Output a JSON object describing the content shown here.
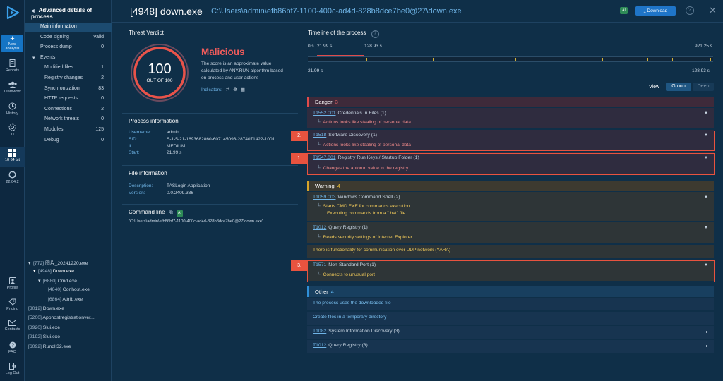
{
  "sidebar": {
    "new_analysis": "New analysis",
    "items": [
      {
        "label": "Reports",
        "icon": "document-icon"
      },
      {
        "label": "Teamwork",
        "icon": "team-icon"
      },
      {
        "label": "History",
        "icon": "history-icon"
      },
      {
        "label": "TI",
        "icon": "ti-icon"
      }
    ],
    "os_label": "10 64 bit",
    "ubuntu_label": "22.04.2",
    "bottom_items": [
      {
        "label": "Profile",
        "icon": "profile-icon"
      },
      {
        "label": "Pricing",
        "icon": "pricing-icon"
      },
      {
        "label": "Contacts",
        "icon": "contacts-icon"
      },
      {
        "label": "FAQ",
        "icon": "faq-icon"
      },
      {
        "label": "Log Out",
        "icon": "logout-icon"
      }
    ]
  },
  "panel": {
    "title": "Advanced details of process",
    "nav": [
      {
        "label": "Main information",
        "value": "",
        "indent": 0,
        "selected": true
      },
      {
        "label": "Code signing",
        "value": "Valid",
        "indent": 0
      },
      {
        "label": "Process dump",
        "value": "0",
        "indent": 0
      },
      {
        "label": "Events",
        "value": "",
        "indent": 0,
        "expand": true
      },
      {
        "label": "Modified files",
        "value": "1",
        "indent": 1
      },
      {
        "label": "Registry changes",
        "value": "2",
        "indent": 1
      },
      {
        "label": "Synchronization",
        "value": "83",
        "indent": 1
      },
      {
        "label": "HTTP requests",
        "value": "0",
        "indent": 1
      },
      {
        "label": "Connections",
        "value": "2",
        "indent": 1
      },
      {
        "label": "Network threats",
        "value": "0",
        "indent": 1
      },
      {
        "label": "Modules",
        "value": "125",
        "indent": 1
      },
      {
        "label": "Debug",
        "value": "0",
        "indent": 1
      }
    ],
    "processes": [
      {
        "pid": "[772]",
        "name": "图片_20241220.exe",
        "level": 0,
        "expand": true
      },
      {
        "pid": "[4948]",
        "name": "Down.exe",
        "level": 1,
        "expand": true,
        "selected": true
      },
      {
        "pid": "[6880]",
        "name": "Cmd.exe",
        "level": 2,
        "expand": true
      },
      {
        "pid": "[4640]",
        "name": "Conhost.exe",
        "level": 3
      },
      {
        "pid": "[6864]",
        "name": "Attrib.exe",
        "level": 3
      },
      {
        "pid": "[3012]",
        "name": "Down.exe",
        "level": 0
      },
      {
        "pid": "[5200]",
        "name": "Apphostregistrationver...",
        "level": 0
      },
      {
        "pid": "[3920]",
        "name": "Slui.exe",
        "level": 0
      },
      {
        "pid": "[2192]",
        "name": "Slui.exe",
        "level": 0
      },
      {
        "pid": "[6092]",
        "name": "Rundll32.exe",
        "level": 0
      }
    ]
  },
  "header": {
    "title": "[4948] down.exe",
    "path": "C:\\Users\\admin\\efb86bf7-1100-400c-ad4d-828b8dce7be0@27\\down.exe",
    "ai_label": "AI",
    "download_label": "Download",
    "help_label": "?",
    "close_label": "✕"
  },
  "verdict": {
    "section_title": "Threat Verdict",
    "score": "100",
    "score_max_label": "OUT OF 100",
    "score_fraction": 1.0,
    "verdict": "Malicious",
    "description": "The score is an approximate value calculated by ANY.RUN algorithm based on process and user actions",
    "indicators_label": "Indicators:"
  },
  "process_info": {
    "title": "Process information",
    "rows": [
      {
        "key": "Username:",
        "value": "admin"
      },
      {
        "key": "SID:",
        "value": "S-1-5-21-1693682860-607145093-2874071422-1001"
      },
      {
        "key": "IL:",
        "value": "MEDIUM"
      },
      {
        "key": "Start:",
        "value": "21.99 s"
      }
    ]
  },
  "file_info": {
    "title": "File information",
    "rows": [
      {
        "key": "Description:",
        "value": "TASLogin Application"
      },
      {
        "key": "Version:",
        "value": "0.0.2409.336"
      }
    ]
  },
  "command_line": {
    "title": "Command line",
    "ai_label": "AI",
    "value": "\"C:\\Users\\admin\\efb86bf7-1100-400c-ad4d-828b8dce7be0@27\\down.exe\""
  },
  "timeline": {
    "title": "Timeline of the process",
    "start_label": "0 s",
    "mark_label": "21.99 s",
    "mid_label": "128.93 s",
    "end_label": "921.25 s",
    "lower_left": "21.99 s",
    "lower_right": "128.93 s"
  },
  "view": {
    "label": "View",
    "group": "Group",
    "deep": "Deep"
  },
  "categories": [
    {
      "name": "Danger",
      "count": "3",
      "kind": "danger"
    },
    {
      "name": "Warning",
      "count": "4",
      "kind": "warn"
    },
    {
      "name": "Other",
      "count": "4",
      "kind": "other"
    }
  ],
  "behaviors": {
    "danger": [
      {
        "tid": "T1552.001",
        "title": "Credentials In Files (1)",
        "subs": [
          "Actions looks like stealing of personal data"
        ]
      },
      {
        "tid": "T1518",
        "title": "Software Discovery (1)",
        "subs": [
          "Actions looks like stealing of personal data"
        ],
        "badge": "2."
      },
      {
        "tid": "T1547.001",
        "title": "Registry Run Keys / Startup Folder (1)",
        "subs": [
          "Changes the autorun value in the registry"
        ],
        "badge": "1."
      }
    ],
    "warning": [
      {
        "tid": "T1059.003",
        "title": "Windows Command Shell (2)",
        "subs": [
          "Starts CMD.EXE for commands execution",
          "Executing commands from a \".bat\" file"
        ]
      },
      {
        "tid": "T1012",
        "title": "Query Registry (1)",
        "subs": [
          "Reads security settings of Internet Explorer"
        ]
      },
      {
        "plain": "There is functionality for communication over UDP network (YARA)"
      },
      {
        "tid": "T1571",
        "title": "Non-Standard Port (1)",
        "subs": [
          "Connects to unusual port"
        ],
        "badge": "3."
      }
    ],
    "other": [
      {
        "plain": "The process uses the downloaded file"
      },
      {
        "plain": "Create files in a temporary directory"
      },
      {
        "tid": "T1082",
        "title": "System Information Discovery (3)"
      },
      {
        "tid": "T1012",
        "title": "Query Registry (3)"
      }
    ]
  },
  "colors": {
    "danger": "#e14b4b",
    "warning": "#d7a52a",
    "other": "#2f8fd8",
    "accent": "#1f75c8"
  }
}
